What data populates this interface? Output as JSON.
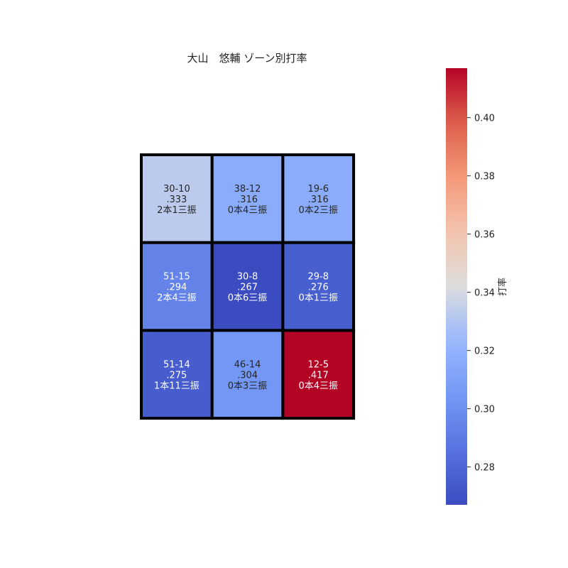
{
  "chart_data": {
    "type": "heatmap",
    "title": "大山　悠輔 ゾーン別打率",
    "colorbar_label": "打率",
    "colormap": "coolwarm",
    "vmin": 0.267,
    "vmax": 0.417,
    "colorbar_ticks": [
      "0.28",
      "0.30",
      "0.32",
      "0.34",
      "0.36",
      "0.38",
      "0.40"
    ],
    "colorbar_tick_values": [
      0.28,
      0.3,
      0.32,
      0.34,
      0.36,
      0.38,
      0.4
    ],
    "rows": 3,
    "cols": 3,
    "cells": [
      [
        {
          "value": 0.333,
          "record": "30-10",
          "avg": ".333",
          "detail": "2本1三振"
        },
        {
          "value": 0.316,
          "record": "38-12",
          "avg": ".316",
          "detail": "0本4三振"
        },
        {
          "value": 0.316,
          "record": "19-6",
          "avg": ".316",
          "detail": "0本2三振"
        }
      ],
      [
        {
          "value": 0.294,
          "record": "51-15",
          "avg": ".294",
          "detail": "2本4三振"
        },
        {
          "value": 0.267,
          "record": "30-8",
          "avg": ".267",
          "detail": "0本6三振"
        },
        {
          "value": 0.276,
          "record": "29-8",
          "avg": ".276",
          "detail": "0本1三振"
        }
      ],
      [
        {
          "value": 0.275,
          "record": "51-14",
          "avg": ".275",
          "detail": "1本11三振"
        },
        {
          "value": 0.304,
          "record": "46-14",
          "avg": ".304",
          "detail": "0本3三振"
        },
        {
          "value": 0.417,
          "record": "12-5",
          "avg": ".417",
          "detail": "0本4三振"
        }
      ]
    ]
  }
}
